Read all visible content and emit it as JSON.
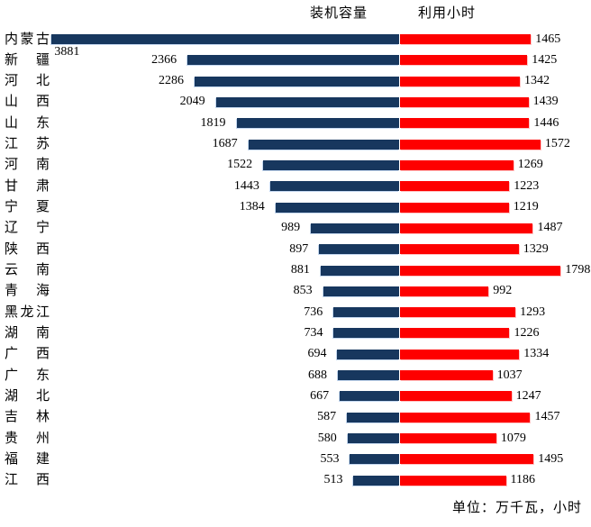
{
  "legend": {
    "capacity_label": "装机容量",
    "hours_label": "利用小时"
  },
  "footer": {
    "unit_note": "单位：万千瓦，小时"
  },
  "chart_data": {
    "type": "bar",
    "subtype": "butterfly-tornado",
    "orientation": "horizontal",
    "title": "",
    "unit_note": "单位：万千瓦，小时",
    "legend_position": "top-center",
    "axis_style": "no visible axes or gridlines; shared center baseline, capacity grows left, hours grows right, data labels at bar ends",
    "categories": [
      "内蒙古",
      "新疆",
      "河北",
      "山西",
      "山东",
      "江苏",
      "河南",
      "甘肃",
      "宁夏",
      "辽宁",
      "陕西",
      "云南",
      "青海",
      "黑龙江",
      "湖南",
      "广西",
      "广东",
      "湖北",
      "吉林",
      "贵州",
      "福建",
      "江西"
    ],
    "series": [
      {
        "name": "装机容量",
        "side": "left",
        "color": "#17375E",
        "shadow_color": "#C6D9F1",
        "values": [
          3881,
          2366,
          2286,
          2049,
          1819,
          1687,
          1522,
          1443,
          1384,
          989,
          897,
          881,
          853,
          736,
          734,
          694,
          688,
          667,
          587,
          580,
          553,
          513
        ]
      },
      {
        "name": "利用小时",
        "side": "right",
        "color": "#FE0000",
        "shadow_color": "#FFC4C4",
        "values": [
          1465,
          1425,
          1342,
          1439,
          1446,
          1572,
          1269,
          1223,
          1219,
          1487,
          1329,
          1798,
          992,
          1293,
          1226,
          1334,
          1037,
          1247,
          1457,
          1079,
          1495,
          1186
        ]
      }
    ]
  }
}
